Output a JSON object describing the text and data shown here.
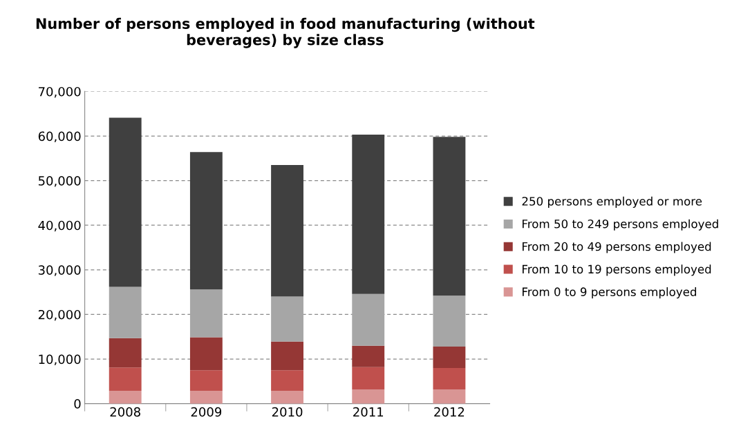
{
  "chart_data": {
    "type": "bar",
    "title": "Number of persons employed in food manufacturing (without beverages) by size class",
    "categories": [
      "2008",
      "2009",
      "2010",
      "2011",
      "2012"
    ],
    "stacked": true,
    "series": [
      {
        "name": "From 0 to 9 persons employed",
        "color": "#d99594",
        "values": [
          2900,
          2900,
          2900,
          3200,
          3200
        ]
      },
      {
        "name": "From 10 to 19 persons employed",
        "color": "#c0504d",
        "values": [
          5200,
          4600,
          4600,
          5000,
          4800
        ]
      },
      {
        "name": "From 20 to 49 persons employed",
        "color": "#953735",
        "values": [
          6600,
          7400,
          6400,
          4800,
          4800
        ]
      },
      {
        "name": "From 50 to 249 persons employed",
        "color": "#a6a6a6",
        "values": [
          11500,
          10700,
          10100,
          11600,
          11400
        ]
      },
      {
        "name": "250 persons employed or more",
        "color": "#404040",
        "values": [
          37900,
          30800,
          29500,
          35700,
          35600
        ]
      }
    ],
    "ylim": [
      0,
      70000
    ],
    "yticks": [
      {
        "value": 0,
        "label": "0"
      },
      {
        "value": 10000,
        "label": "10,000"
      },
      {
        "value": 20000,
        "label": "20,000"
      },
      {
        "value": 30000,
        "label": "30,000"
      },
      {
        "value": 40000,
        "label": "40,000"
      },
      {
        "value": 50000,
        "label": "50,000"
      },
      {
        "value": 60000,
        "label": "60,000"
      },
      {
        "value": 70000,
        "label": "70,000"
      }
    ],
    "grid": "y",
    "legend": "right"
  }
}
